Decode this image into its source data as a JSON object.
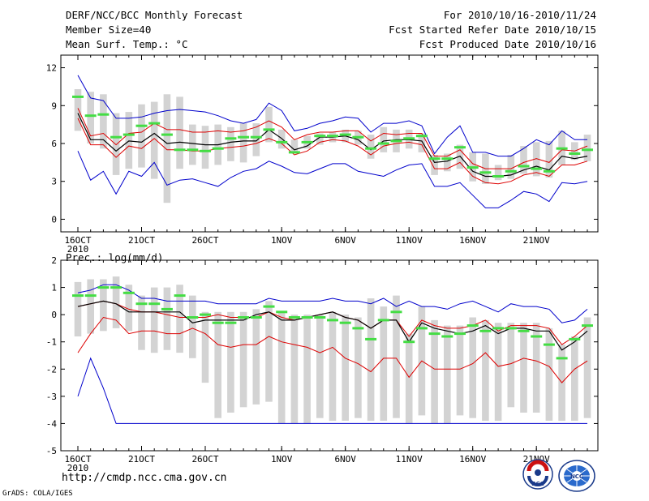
{
  "header": {
    "title": "DERF/NCC/BCC Monthly Forecast",
    "member_size": "Member Size=40",
    "variable": "Mean Surf. Temp.: °C",
    "period": "For 2010/10/16-2010/11/24",
    "start_date": "Fcst Started Refer Date 2010/10/15",
    "produced_date": "Fcst Produced Date 2010/10/16"
  },
  "footer": {
    "url": "http://cmdp.ncc.cma.gov.cn",
    "credit": "GrADS: COLA/IGES",
    "logo_left_text": "BCC",
    "logo_right_text": "NCC"
  },
  "colors": {
    "box": "#d3d3d3",
    "median": "#44dd44",
    "mean": "#000000",
    "spread": "#dd0000",
    "extreme": "#0000cc"
  },
  "chart_data": [
    {
      "type": "box-ensemble",
      "title": "Mean Surf. Temp.: °C",
      "ylabel": "°C",
      "ylim": [
        -1,
        13
      ],
      "yticks": [
        0,
        3,
        6,
        9,
        12
      ],
      "xlim": [
        0,
        40
      ],
      "xticks": [
        {
          "pos": 0,
          "label": "16OCT"
        },
        {
          "pos": 5,
          "label": "21OCT"
        },
        {
          "pos": 10,
          "label": "26OCT"
        },
        {
          "pos": 16,
          "label": "1NOV"
        },
        {
          "pos": 21,
          "label": "6NOV"
        },
        {
          "pos": 26,
          "label": "11NOV"
        },
        {
          "pos": 31,
          "label": "16NOV"
        },
        {
          "pos": 36,
          "label": "21NOV"
        }
      ],
      "year_label": "2010",
      "series": [
        {
          "name": "max",
          "values": [
            11.4,
            9.6,
            9.4,
            8,
            8,
            8.1,
            8.4,
            8.6,
            8.7,
            8.6,
            8.5,
            8.2,
            7.8,
            7.6,
            7.9,
            9.2,
            8.6,
            7,
            7.2,
            7.6,
            7.8,
            8.1,
            8,
            6.9,
            7.6,
            7.6,
            7.8,
            7.4,
            5.2,
            6.5,
            7.4,
            5.3,
            5.3,
            5,
            5,
            5.6,
            6.3,
            5.9,
            7,
            6.3,
            6.3
          ]
        },
        {
          "name": "upper",
          "values": [
            8.8,
            6.6,
            6.8,
            5.9,
            6.8,
            6.9,
            7.6,
            7.1,
            7.1,
            6.9,
            6.9,
            7,
            6.9,
            7,
            7.3,
            7.8,
            7.3,
            6.3,
            6.7,
            6.9,
            6.9,
            7,
            7,
            6.2,
            6.8,
            6.7,
            6.8,
            6.8,
            5,
            5,
            5.5,
            4.4,
            4,
            4,
            4,
            4.5,
            4.8,
            4.5,
            5.5,
            5.4,
            5.8
          ]
        },
        {
          "name": "mean",
          "values": [
            8.4,
            6.3,
            6.3,
            5.4,
            6.2,
            6.1,
            6.8,
            6,
            6.1,
            6,
            5.9,
            5.9,
            6.1,
            6.2,
            6.2,
            7.1,
            6.4,
            5.5,
            5.8,
            6.5,
            6.5,
            6.6,
            6.3,
            5.5,
            6.2,
            6.3,
            6.3,
            6.2,
            4.5,
            4.6,
            5,
            3.8,
            3.4,
            3.4,
            3.5,
            3.9,
            4.2,
            3.9,
            5,
            4.8,
            5
          ]
        },
        {
          "name": "lower",
          "values": [
            8,
            5.9,
            5.9,
            4.9,
            5.8,
            5.6,
            6.4,
            5.5,
            5.5,
            5.4,
            5.4,
            5.6,
            5.7,
            5.8,
            6,
            6.4,
            6,
            5.1,
            5.4,
            6.1,
            6.3,
            6.2,
            5.8,
            5.1,
            5.8,
            6,
            6.1,
            5.9,
            4,
            4,
            4.5,
            3.4,
            2.9,
            2.8,
            3,
            3.5,
            3.7,
            3.4,
            4.3,
            4.3,
            4.6
          ]
        },
        {
          "name": "min",
          "values": [
            5.4,
            3.1,
            3.8,
            2,
            3.8,
            3.4,
            4.5,
            2.7,
            3.1,
            3.2,
            2.9,
            2.6,
            3.3,
            3.8,
            4,
            4.6,
            4.2,
            3.7,
            3.6,
            4,
            4.4,
            4.4,
            3.8,
            3.6,
            3.4,
            3.9,
            4.3,
            4.4,
            2.6,
            2.6,
            2.9,
            1.9,
            0.9,
            0.9,
            1.5,
            2.2,
            2,
            1.4,
            2.9,
            2.8,
            3
          ]
        },
        {
          "name": "median",
          "values": [
            9.7,
            8.2,
            8.3,
            6.5,
            6.7,
            7.4,
            7.6,
            6.7,
            5.5,
            5.5,
            5.4,
            5.6,
            6.4,
            6.5,
            6.5,
            7.1,
            6.1,
            5.3,
            6.1,
            6.6,
            6.6,
            6.7,
            6.5,
            5.6,
            6,
            6.2,
            6.4,
            6.6,
            4.8,
            4.8,
            5.7,
            4.1,
            3.7,
            3.4,
            3.8,
            4.2,
            4,
            3.8,
            5.6,
            5.2,
            5.5
          ]
        },
        {
          "name": "box_high",
          "values": [
            10.3,
            10.1,
            9.9,
            8.4,
            8.5,
            9.1,
            9.3,
            9.9,
            9.7,
            7.5,
            7.4,
            7.5,
            7.3,
            7.6,
            7.6,
            8.9,
            7.1,
            6.3,
            6.6,
            6.8,
            6.9,
            7.1,
            7,
            6.7,
            7.3,
            7.1,
            7.1,
            6.8,
            5.1,
            5.2,
            5.9,
            5.3,
            5.2,
            4.3,
            5.1,
            5.8,
            6.1,
            6.2,
            7,
            6.1,
            6.7
          ]
        },
        {
          "name": "box_low",
          "values": [
            7,
            6,
            5.6,
            3.5,
            4,
            4.1,
            3.2,
            1.3,
            4,
            4.3,
            4,
            4.3,
            4.6,
            4.5,
            5,
            6.1,
            5.6,
            5.2,
            5.6,
            5.9,
            6.1,
            6.1,
            5.9,
            4.8,
            5.3,
            5.3,
            5.6,
            5.3,
            3.5,
            3.8,
            4,
            3,
            2.8,
            3.1,
            3.2,
            3.6,
            3.4,
            3.3,
            4.3,
            4.7,
            4.6
          ]
        }
      ]
    },
    {
      "type": "box-ensemble",
      "title": "Prec.: log(mm/d)",
      "ylabel": "log(mm/d)",
      "ylim": [
        -5,
        2
      ],
      "yticks": [
        -5,
        -4,
        -3,
        -2,
        -1,
        0,
        1,
        2
      ],
      "xlim": [
        0,
        40
      ],
      "xticks": [
        {
          "pos": 0,
          "label": "16OCT"
        },
        {
          "pos": 5,
          "label": "21OCT"
        },
        {
          "pos": 10,
          "label": "26OCT"
        },
        {
          "pos": 16,
          "label": "1NOV"
        },
        {
          "pos": 21,
          "label": "6NOV"
        },
        {
          "pos": 26,
          "label": "11NOV"
        },
        {
          "pos": 31,
          "label": "16NOV"
        },
        {
          "pos": 36,
          "label": "21NOV"
        }
      ],
      "year_label": "2010",
      "series": [
        {
          "name": "max",
          "values": [
            0.8,
            0.9,
            1.1,
            1.1,
            0.9,
            0.6,
            0.6,
            0.5,
            0.5,
            0.5,
            0.5,
            0.4,
            0.4,
            0.4,
            0.4,
            0.6,
            0.5,
            0.5,
            0.5,
            0.5,
            0.6,
            0.5,
            0.5,
            0.4,
            0.6,
            0.3,
            0.5,
            0.3,
            0.3,
            0.2,
            0.4,
            0.5,
            0.3,
            0.1,
            0.4,
            0.3,
            0.3,
            0.2,
            -0.3,
            -0.2,
            0.2
          ]
        },
        {
          "name": "upper",
          "values": [
            0.3,
            0.4,
            0.5,
            0.4,
            0.2,
            0.1,
            0.1,
            0,
            -0.1,
            -0.1,
            -0.1,
            0,
            -0.1,
            -0.1,
            -0.1,
            0.1,
            -0.1,
            -0.2,
            -0.1,
            0,
            0.1,
            -0.1,
            -0.2,
            -0.5,
            -0.2,
            -0.2,
            -0.8,
            -0.2,
            -0.4,
            -0.5,
            -0.5,
            -0.4,
            -0.2,
            -0.6,
            -0.4,
            -0.4,
            -0.4,
            -0.5,
            -1.1,
            -0.8,
            -0.4
          ]
        },
        {
          "name": "mean",
          "values": [
            0.3,
            0.4,
            0.5,
            0.4,
            0.1,
            0.1,
            0.1,
            0.1,
            0.1,
            -0.3,
            -0.2,
            -0.2,
            -0.2,
            -0.2,
            0,
            0.1,
            -0.2,
            -0.2,
            -0.1,
            0,
            0.1,
            -0.1,
            -0.2,
            -0.5,
            -0.2,
            -0.2,
            -1,
            -0.3,
            -0.5,
            -0.6,
            -0.7,
            -0.6,
            -0.4,
            -0.7,
            -0.5,
            -0.5,
            -0.6,
            -0.6,
            -1.3,
            -1,
            -0.6
          ]
        },
        {
          "name": "lower",
          "values": [
            -1.4,
            -0.7,
            -0.1,
            -0.2,
            -0.7,
            -0.6,
            -0.6,
            -0.7,
            -0.7,
            -0.5,
            -0.7,
            -1.1,
            -1.2,
            -1.1,
            -1.1,
            -0.8,
            -1,
            -1.1,
            -1.2,
            -1.4,
            -1.2,
            -1.6,
            -1.8,
            -2.1,
            -1.6,
            -1.6,
            -2.3,
            -1.7,
            -2,
            -2,
            -2,
            -1.8,
            -1.4,
            -1.9,
            -1.8,
            -1.6,
            -1.7,
            -1.9,
            -2.5,
            -2,
            -1.7
          ]
        },
        {
          "name": "min",
          "values": [
            -3,
            -1.6,
            -2.7,
            -4,
            -4,
            -4,
            -4,
            -4,
            -4,
            -4,
            -4,
            -4,
            -4,
            -4,
            -4,
            -4,
            -4,
            -4,
            -4,
            -4,
            -4,
            -4,
            -4,
            -4,
            -4,
            -4,
            -4,
            -4,
            -4,
            -4,
            -4,
            -4,
            -4,
            -4,
            -4,
            -4,
            -4,
            -4,
            -4,
            -4,
            -4
          ]
        },
        {
          "name": "median",
          "values": [
            0.7,
            0.7,
            1,
            1,
            0.8,
            0.4,
            0.4,
            0.2,
            0.7,
            -0.1,
            0,
            -0.3,
            -0.3,
            -0.1,
            -0.1,
            0.3,
            0.1,
            -0.1,
            -0.1,
            -0.1,
            -0.2,
            -0.3,
            -0.5,
            -0.9,
            -0.2,
            0.1,
            -1,
            -0.5,
            -0.7,
            -0.8,
            -0.7,
            -0.4,
            -0.6,
            -0.5,
            -0.5,
            -0.6,
            -0.8,
            -1.1,
            -1.6,
            -0.9,
            -0.4
          ]
        },
        {
          "name": "box_high",
          "values": [
            1.2,
            1.3,
            1.3,
            1.4,
            1.1,
            0.7,
            1,
            1,
            1.1,
            0.7,
            0.1,
            0.1,
            0.1,
            0.1,
            0.2,
            0.5,
            0.1,
            0,
            0,
            0,
            0.1,
            0,
            -0.1,
            0.6,
            0.3,
            0.7,
            -0.7,
            0.3,
            -0.2,
            -0.4,
            -0.4,
            -0.1,
            -0.2,
            -0.3,
            -0.3,
            -0.3,
            -0.3,
            -0.5,
            -1.1,
            -0.8,
            -0.1
          ]
        },
        {
          "name": "box_low",
          "values": [
            -0.8,
            -0.7,
            -0.6,
            -0.5,
            -0.6,
            -1.3,
            -1.4,
            -1.3,
            -1.4,
            -1.6,
            -2.5,
            -3.8,
            -3.6,
            -3.4,
            -3.3,
            -3.2,
            -4,
            -4,
            -4,
            -3.8,
            -3.9,
            -3.9,
            -3.8,
            -3.9,
            -3.9,
            -3.8,
            -4,
            -3.7,
            -4,
            -4,
            -3.7,
            -3.8,
            -3.9,
            -3.9,
            -3.4,
            -3.6,
            -3.6,
            -3.9,
            -3.9,
            -3.9,
            -3.8
          ]
        }
      ]
    }
  ]
}
